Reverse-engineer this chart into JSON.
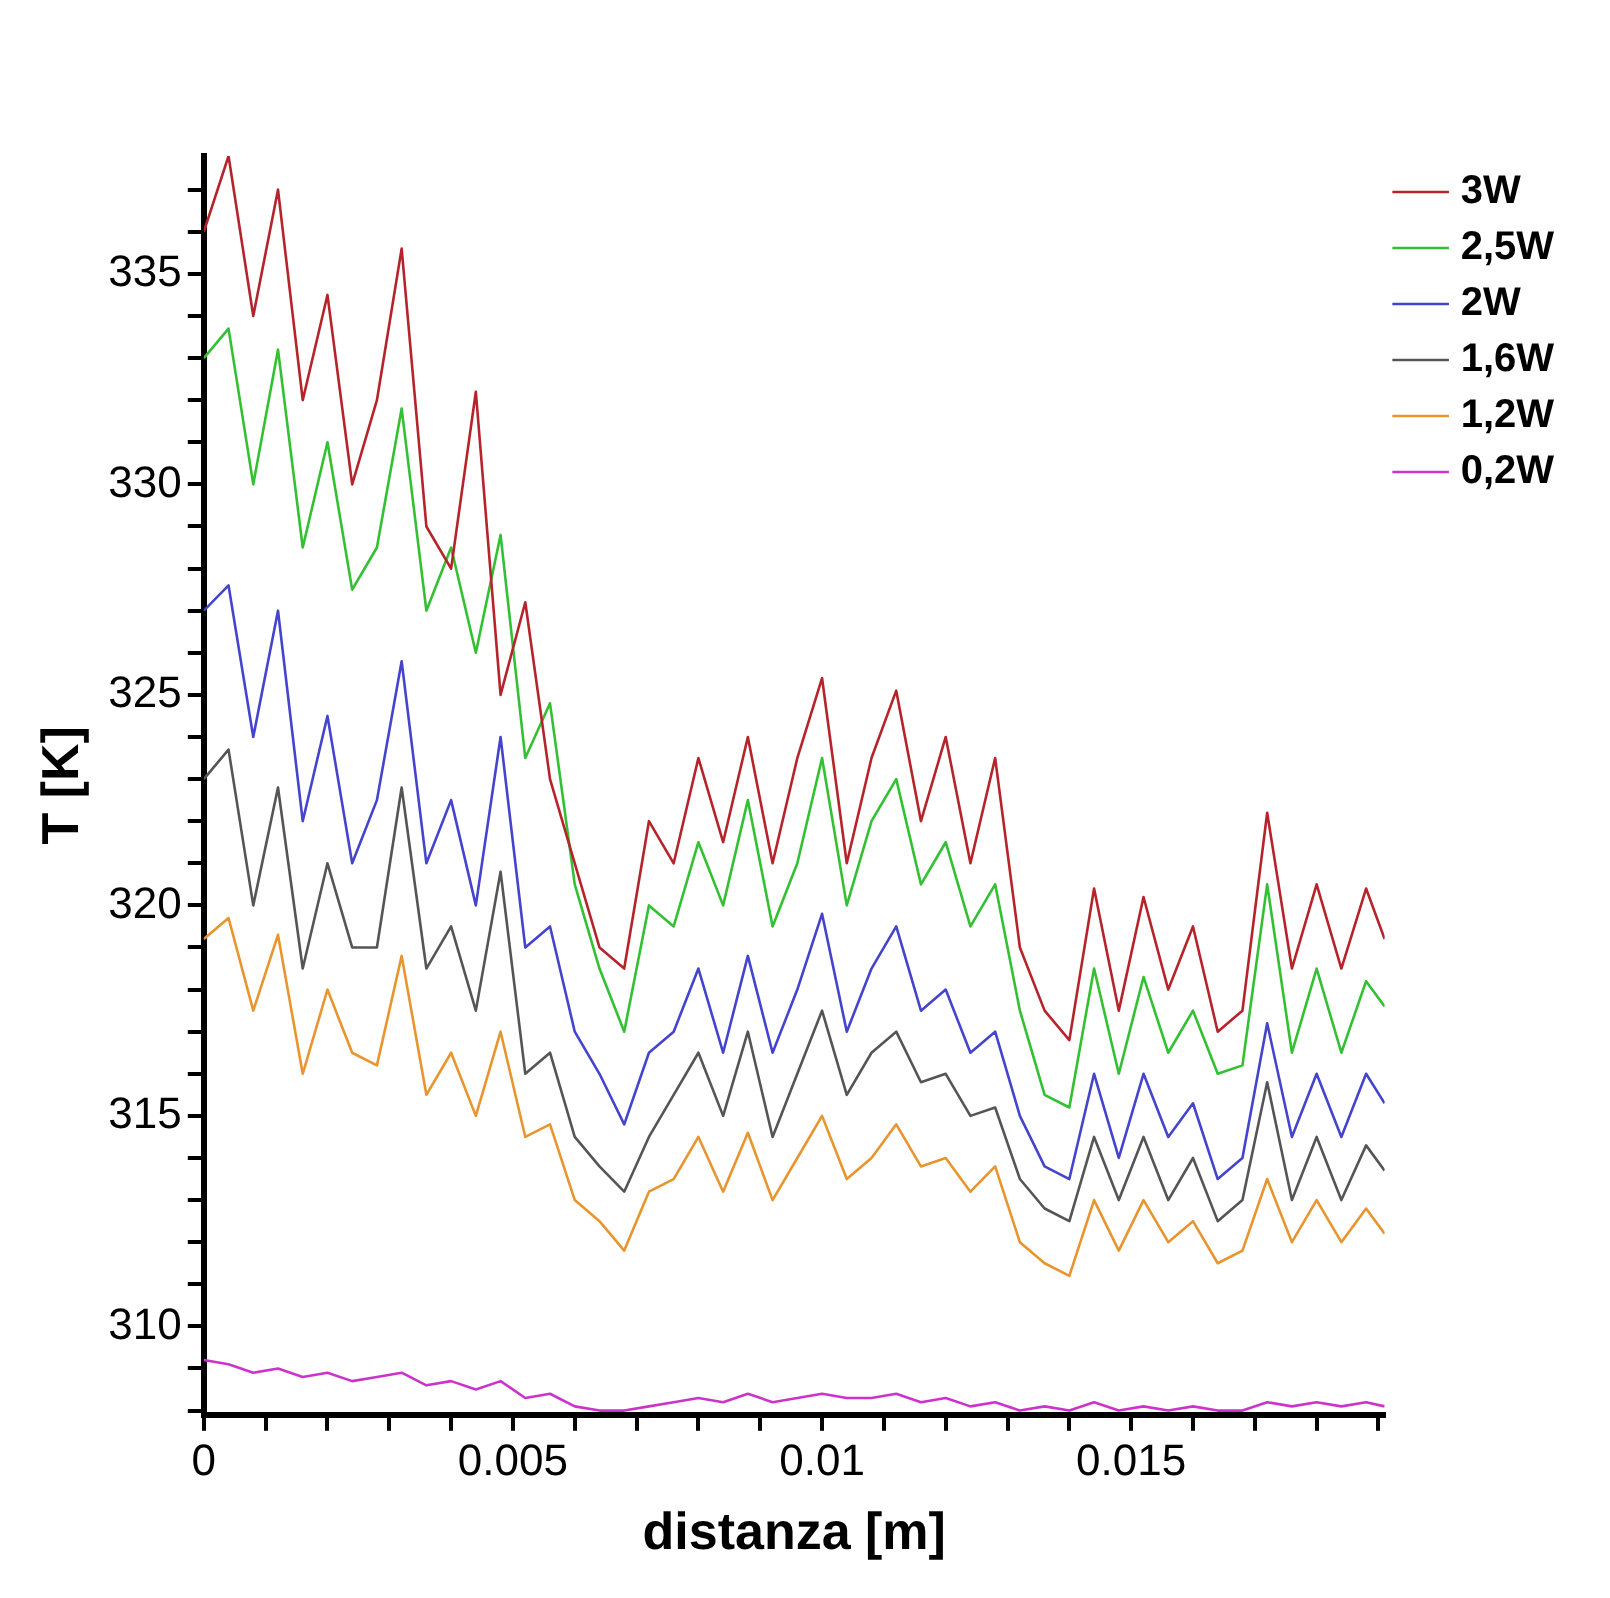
{
  "chart_data": {
    "type": "line",
    "xlabel": "distanza [m]",
    "ylabel": "T [K]",
    "legend": "top right",
    "x": [
      0,
      0.0004,
      0.0008,
      0.0012,
      0.0016,
      0.002,
      0.0024,
      0.0028,
      0.0032,
      0.0036,
      0.004,
      0.0044,
      0.0048,
      0.0052,
      0.0056,
      0.006,
      0.0064,
      0.0068,
      0.0072,
      0.0076,
      0.008,
      0.0084,
      0.0088,
      0.0092,
      0.0096,
      0.01,
      0.0104,
      0.0108,
      0.0112,
      0.0116,
      0.012,
      0.0124,
      0.0128,
      0.0132,
      0.0136,
      0.014,
      0.0144,
      0.0148,
      0.0152,
      0.0156,
      0.016,
      0.0164,
      0.0168,
      0.0172,
      0.0176,
      0.018,
      0.0184,
      0.0188,
      0.0191
    ],
    "xlim": [
      0,
      0.0191
    ],
    "xticks": [
      0,
      {
        "value": 0.001,
        "label": null
      },
      {
        "value": 0.002,
        "label": null
      },
      {
        "value": 0.003,
        "label": null
      },
      {
        "value": 0.004,
        "label": null
      },
      0.005,
      {
        "value": 0.006,
        "label": null
      },
      {
        "value": 0.007,
        "label": null
      },
      {
        "value": 0.008,
        "label": null
      },
      {
        "value": 0.009,
        "label": null
      },
      0.01,
      {
        "value": 0.011,
        "label": null
      },
      {
        "value": 0.012,
        "label": null
      },
      {
        "value": 0.013,
        "label": null
      },
      {
        "value": 0.014,
        "label": null
      },
      0.015,
      {
        "value": 0.016,
        "label": null
      },
      {
        "value": 0.017,
        "label": null
      },
      {
        "value": 0.018,
        "label": null
      },
      {
        "value": 0.019,
        "label": null
      }
    ],
    "ylim": [
      307.9,
      337.8
    ],
    "yticks": [
      {
        "value": 308,
        "label": null
      },
      {
        "value": 309,
        "label": null
      },
      310,
      {
        "value": 311,
        "label": null
      },
      {
        "value": 312,
        "label": null
      },
      {
        "value": 313,
        "label": null
      },
      {
        "value": 314,
        "label": null
      },
      315,
      {
        "value": 316,
        "label": null
      },
      {
        "value": 317,
        "label": null
      },
      {
        "value": 318,
        "label": null
      },
      {
        "value": 319,
        "label": null
      },
      320,
      {
        "value": 321,
        "label": null
      },
      {
        "value": 322,
        "label": null
      },
      {
        "value": 323,
        "label": null
      },
      {
        "value": 324,
        "label": null
      },
      325,
      {
        "value": 326,
        "label": null
      },
      {
        "value": 327,
        "label": null
      },
      {
        "value": 328,
        "label": null
      },
      {
        "value": 329,
        "label": null
      },
      330,
      {
        "value": 331,
        "label": null
      },
      {
        "value": 332,
        "label": null
      },
      {
        "value": 333,
        "label": null
      },
      {
        "value": 334,
        "label": null
      },
      335,
      {
        "value": 336,
        "label": null
      },
      {
        "value": 337,
        "label": null
      }
    ],
    "series": [
      {
        "name": "3W",
        "color": "#b5242a",
        "values": [
          336,
          337.8,
          334,
          337,
          332,
          334.5,
          330,
          332,
          335.6,
          329,
          328,
          332.2,
          325,
          327.2,
          323,
          321,
          319,
          318.5,
          322,
          321,
          323.5,
          321.5,
          324,
          321,
          323.5,
          325.4,
          321,
          323.5,
          325.1,
          322,
          324,
          321,
          323.5,
          319,
          317.5,
          316.8,
          320.4,
          317.5,
          320.2,
          318,
          319.5,
          317,
          317.5,
          322.2,
          318.5,
          320.5,
          318.5,
          320.4,
          319.2
        ]
      },
      {
        "name": "2,5W",
        "color": "#33c033",
        "values": [
          333,
          333.7,
          330,
          333.2,
          328.5,
          331,
          327.5,
          328.5,
          331.8,
          327,
          328.5,
          326,
          328.8,
          323.5,
          324.8,
          320.5,
          318.5,
          317,
          320,
          319.5,
          321.5,
          320,
          322.5,
          319.5,
          321,
          323.5,
          320,
          322,
          323,
          320.5,
          321.5,
          319.5,
          320.5,
          317.5,
          315.5,
          315.2,
          318.5,
          316,
          318.3,
          316.5,
          317.5,
          316,
          316.2,
          320.5,
          316.5,
          318.5,
          316.5,
          318.2,
          317.6
        ]
      },
      {
        "name": "2W",
        "color": "#4444cc",
        "values": [
          327,
          327.6,
          324,
          327,
          322,
          324.5,
          321,
          322.5,
          325.8,
          321,
          322.5,
          320,
          324,
          319,
          319.5,
          317,
          316,
          314.8,
          316.5,
          317,
          318.5,
          316.5,
          318.8,
          316.5,
          318,
          319.8,
          317,
          318.5,
          319.5,
          317.5,
          318,
          316.5,
          317,
          315,
          313.8,
          313.5,
          316,
          314,
          316,
          314.5,
          315.3,
          313.5,
          314,
          317.2,
          314.5,
          316,
          314.5,
          316,
          315.3
        ]
      },
      {
        "name": "1,6W",
        "color": "#555555",
        "values": [
          323,
          323.7,
          320,
          322.8,
          318.5,
          321,
          319,
          319,
          322.8,
          318.5,
          319.5,
          317.5,
          320.8,
          316,
          316.5,
          314.5,
          313.8,
          313.2,
          314.5,
          315.5,
          316.5,
          315,
          317,
          314.5,
          316,
          317.5,
          315.5,
          316.5,
          317,
          315.8,
          316,
          315,
          315.2,
          313.5,
          312.8,
          312.5,
          314.5,
          313,
          314.5,
          313,
          314,
          312.5,
          313,
          315.8,
          313,
          314.5,
          313,
          314.3,
          313.7
        ]
      },
      {
        "name": "1,2W",
        "color": "#e8952f",
        "values": [
          319.2,
          319.7,
          317.5,
          319.3,
          316,
          318,
          316.5,
          316.2,
          318.8,
          315.5,
          316.5,
          315,
          317,
          314.5,
          314.8,
          313,
          312.5,
          311.8,
          313.2,
          313.5,
          314.5,
          313.2,
          314.6,
          313,
          314,
          315,
          313.5,
          314,
          314.8,
          313.8,
          314,
          313.2,
          313.8,
          312,
          311.5,
          311.2,
          313,
          311.8,
          313,
          312,
          312.5,
          311.5,
          311.8,
          313.5,
          312,
          313,
          312,
          312.8,
          312.2
        ]
      },
      {
        "name": "0,2W",
        "color": "#cc33cc",
        "values": [
          309.2,
          309.1,
          308.9,
          309,
          308.8,
          308.9,
          308.7,
          308.8,
          308.9,
          308.6,
          308.7,
          308.5,
          308.7,
          308.3,
          308.4,
          308.1,
          308,
          308,
          308.1,
          308.2,
          308.3,
          308.2,
          308.4,
          308.2,
          308.3,
          308.4,
          308.3,
          308.3,
          308.4,
          308.2,
          308.3,
          308.1,
          308.2,
          308,
          308.1,
          308,
          308.2,
          308,
          308.1,
          308,
          308.1,
          308,
          308,
          308.2,
          308.1,
          308.2,
          308.1,
          308.2,
          308.1
        ]
      }
    ]
  }
}
